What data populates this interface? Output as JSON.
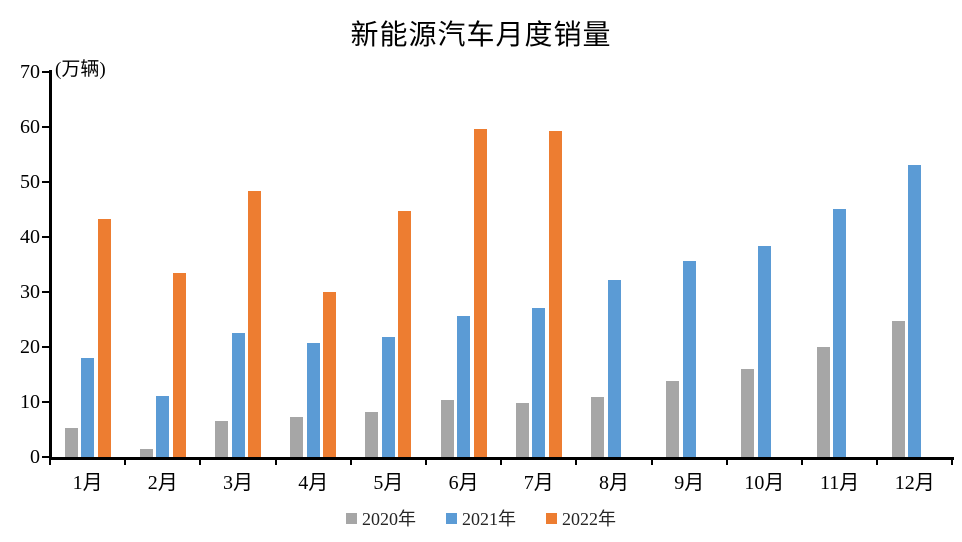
{
  "chart_data": {
    "type": "bar",
    "title": "新能源汽车月度销量",
    "unit_label": "(万辆)",
    "categories": [
      "1月",
      "2月",
      "3月",
      "4月",
      "5月",
      "6月",
      "7月",
      "8月",
      "9月",
      "10月",
      "11月",
      "12月"
    ],
    "series": [
      {
        "name": "2020年",
        "color": "#A6A6A6",
        "values": [
          5.2,
          1.5,
          6.5,
          7.2,
          8.2,
          10.4,
          9.8,
          10.9,
          13.9,
          16.0,
          20.0,
          24.8
        ]
      },
      {
        "name": "2021年",
        "color": "#5B9BD5",
        "values": [
          18.0,
          11.1,
          22.6,
          20.7,
          21.8,
          25.6,
          27.1,
          32.1,
          35.7,
          38.4,
          45.1,
          53.1
        ]
      },
      {
        "name": "2022年",
        "color": "#ED7D31",
        "values": [
          43.2,
          33.4,
          48.4,
          30.0,
          44.8,
          59.6,
          59.3,
          null,
          null,
          null,
          null,
          null
        ]
      }
    ],
    "ylim": [
      0,
      70
    ],
    "yticks": [
      0,
      10,
      20,
      30,
      40,
      50,
      60,
      70
    ],
    "xlabel": "",
    "ylabel": "",
    "grid": false,
    "legend_position": "bottom",
    "axis_color": "#000000",
    "background": "#FFFFFF"
  }
}
